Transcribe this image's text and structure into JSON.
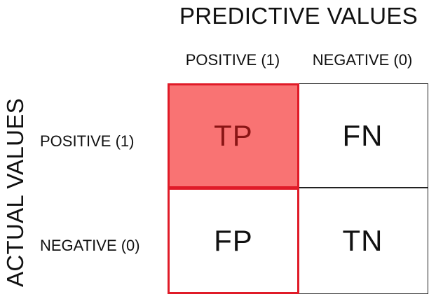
{
  "axes": {
    "top_title": "PREDICTIVE VALUES",
    "left_title": "ACTUAL VALUES"
  },
  "columns": [
    {
      "label": "POSITIVE (1)"
    },
    {
      "label": "NEGATIVE (0)"
    }
  ],
  "rows": [
    {
      "label": "POSITIVE (1)"
    },
    {
      "label": "NEGATIVE (0)"
    }
  ],
  "cells": {
    "tp": "TP",
    "fn": "FN",
    "fp": "FP",
    "tn": "TN"
  },
  "colors": {
    "highlight_fill": "#f97373",
    "highlight_border": "#e01b28",
    "highlight_text": "#8a1515",
    "grid_line": "#222222"
  }
}
